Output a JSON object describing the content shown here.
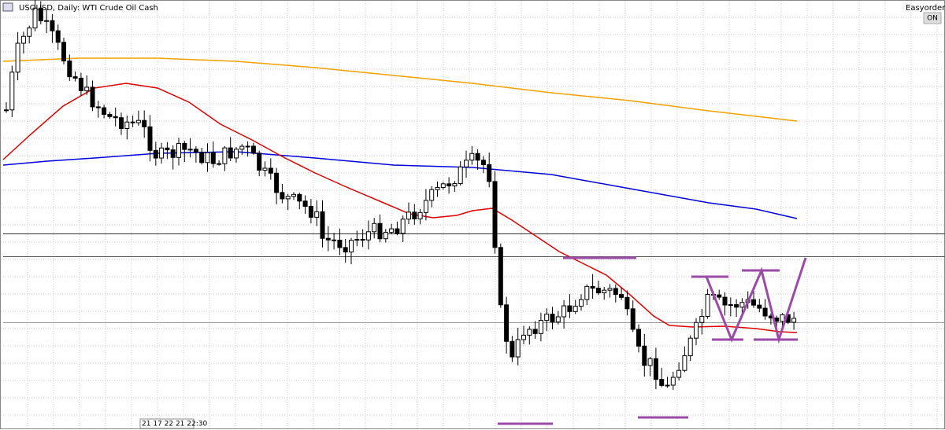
{
  "header": {
    "title": "USOUSD, Daily:  WTI Crude Oil Cash"
  },
  "toolbar": {
    "label": "Easyorder",
    "button": "ON"
  },
  "footer": {
    "time_label": "21 17 22 21 22:30"
  }
}
